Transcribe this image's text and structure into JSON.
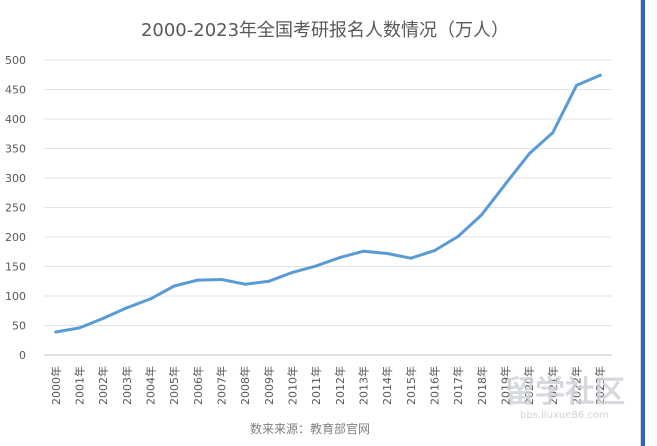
{
  "chart_data": {
    "type": "line",
    "title": "2000-2023年全国考研报名人数情况（万人）",
    "categories": [
      "2000年",
      "2001年",
      "2002年",
      "2003年",
      "2004年",
      "2005年",
      "2006年",
      "2007年",
      "2008年",
      "2009年",
      "2010年",
      "2011年",
      "2012年",
      "2013年",
      "2014年",
      "2015年",
      "2016年",
      "2017年",
      "2018年",
      "2019年",
      "2020年",
      "2021年",
      "2022年",
      "2023年"
    ],
    "series": [
      {
        "values": [
          39,
          46,
          62,
          80,
          95,
          117,
          127,
          128,
          120,
          125,
          140,
          151,
          165,
          176,
          172,
          164,
          177,
          201,
          238,
          290,
          341,
          377,
          457,
          474
        ],
        "color": "#5b9bd5"
      }
    ],
    "yticks": [
      0,
      50,
      100,
      150,
      200,
      250,
      300,
      350,
      400,
      450,
      500
    ],
    "ylim": [
      0,
      500
    ],
    "grid": true,
    "legend": "none",
    "source_note": "数来来源：教育部官网"
  },
  "watermark": {
    "main": "留学社区",
    "url": "bbs.liuxue86.com"
  }
}
